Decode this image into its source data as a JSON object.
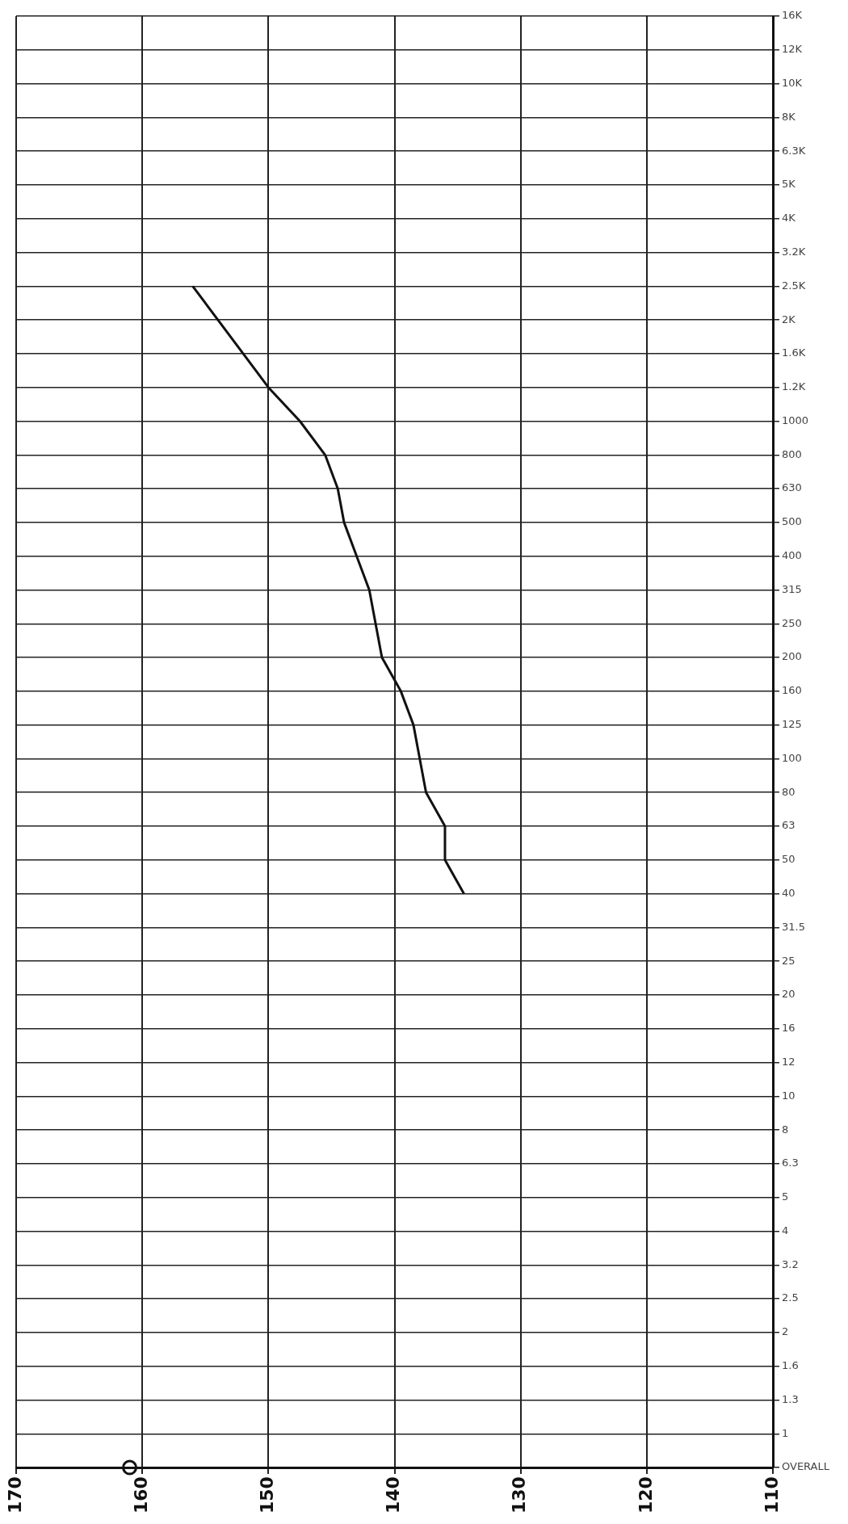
{
  "chart_data": {
    "type": "line",
    "orientation": "horizontal",
    "categories": [
      "16K",
      "12K",
      "10K",
      "8K",
      "6.3K",
      "5K",
      "4K",
      "3.2K",
      "2.5K",
      "2K",
      "1.6K",
      "1.2K",
      "1000",
      "800",
      "630",
      "500",
      "400",
      "315",
      "250",
      "200",
      "160",
      "125",
      "100",
      "80",
      "63",
      "50",
      "40",
      "31.5",
      "25",
      "20",
      "16",
      "12",
      "10",
      "8",
      "6.3",
      "5",
      "4",
      "3.2",
      "2.5",
      "2",
      "1.6",
      "1.3",
      "1",
      "OVERALL"
    ],
    "series": [
      {
        "color": "#111111",
        "marker": "none",
        "values": [
          null,
          null,
          null,
          null,
          null,
          null,
          null,
          null,
          156,
          154,
          152,
          150,
          147.5,
          145.5,
          144.5,
          144,
          143,
          142,
          141.5,
          141,
          139.5,
          138.5,
          138,
          137.5,
          136,
          136,
          134.5,
          null,
          null,
          null,
          null,
          null,
          null,
          null,
          null,
          null,
          null,
          null,
          null,
          null,
          null,
          null,
          null,
          null
        ]
      },
      {
        "type": "scatter",
        "color": "#111111",
        "marker": "circle",
        "values": [
          null,
          null,
          null,
          null,
          null,
          null,
          null,
          null,
          null,
          null,
          null,
          null,
          null,
          null,
          null,
          null,
          null,
          null,
          null,
          null,
          null,
          null,
          null,
          null,
          null,
          null,
          null,
          null,
          null,
          null,
          null,
          null,
          null,
          null,
          null,
          null,
          null,
          null,
          null,
          null,
          null,
          null,
          null,
          161
        ]
      }
    ],
    "xlim": [
      170,
      110
    ],
    "xticks": [
      170,
      160,
      150,
      140,
      130,
      120,
      110
    ],
    "grid": true,
    "legend": false
  }
}
